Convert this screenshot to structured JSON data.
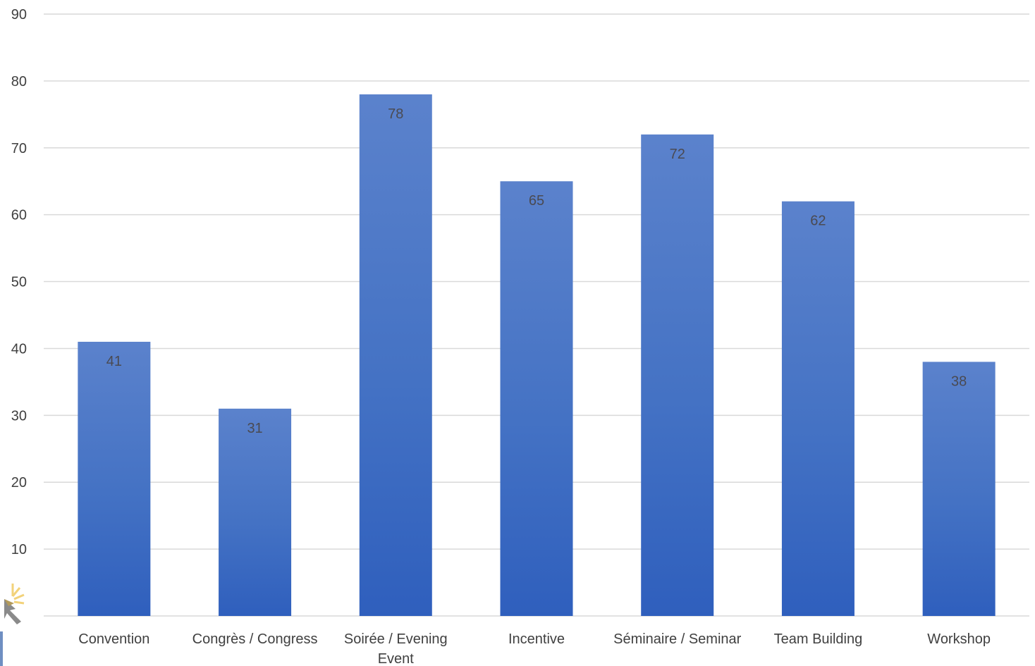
{
  "chart_data": {
    "type": "bar",
    "title": "",
    "xlabel": "",
    "ylabel": "",
    "categories": [
      "Convention",
      "Congrès / Congress",
      "Soirée / Evening Event",
      "Incentive",
      "Séminaire / Seminar",
      "Team Building",
      "Workshop"
    ],
    "values": [
      41,
      31,
      78,
      65,
      72,
      62,
      38
    ],
    "data_labels": [
      "41",
      "31",
      "78",
      "65",
      "72",
      "62",
      "38"
    ],
    "ylim": [
      0,
      90
    ],
    "yticks": [
      10,
      20,
      30,
      40,
      50,
      60,
      70,
      80,
      90
    ],
    "ytick_labels": [
      "10",
      "20",
      "30",
      "40",
      "50",
      "60",
      "70",
      "80",
      "90"
    ],
    "grid": true,
    "legend": "none",
    "colors": {
      "bar_top": "#5b82cc",
      "bar_mid": "#4472c4",
      "bar_bottom": "#2f5fbd",
      "grid": "#d9d9d9",
      "axis_text": "#404040"
    }
  },
  "logo": {
    "name": "sun-arrow-logo",
    "colors": [
      "#f2d27a",
      "#b39a5a",
      "#6f8fc2"
    ]
  }
}
